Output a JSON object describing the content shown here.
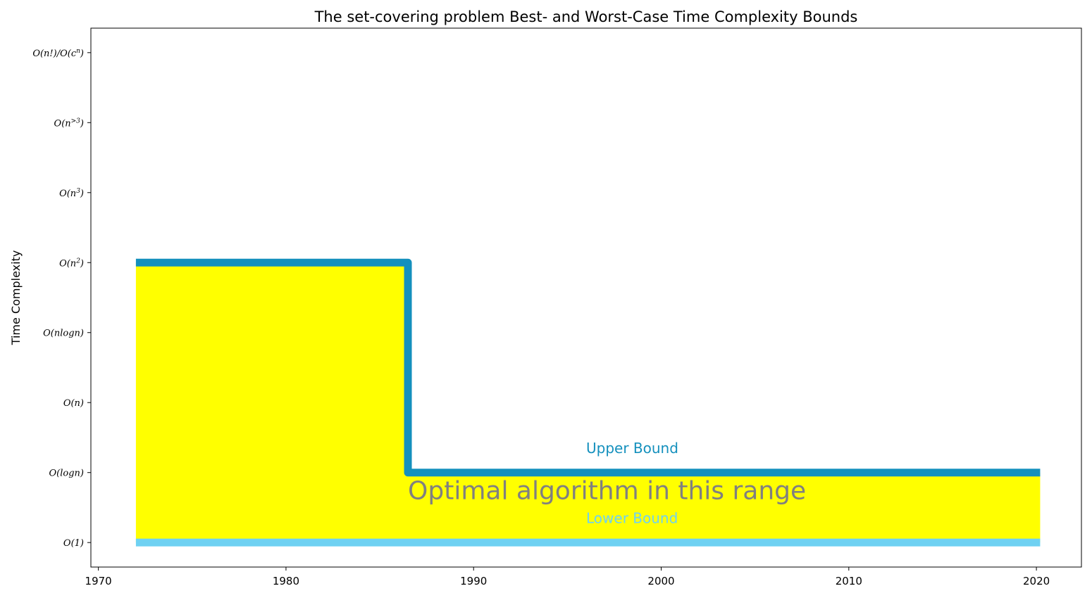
{
  "chart_data": {
    "type": "area",
    "title": "The set-covering problem Best- and Worst-Case Time Complexity Bounds",
    "xlabel": "",
    "ylabel": "Time Complexity",
    "xlim": [
      1969.6,
      2022.4
    ],
    "ylim": [
      0.65,
      8.35
    ],
    "xticks": [
      1970,
      1980,
      1990,
      2000,
      2010,
      2020
    ],
    "yticks": [
      {
        "value": 1,
        "label": "O(1)"
      },
      {
        "value": 2,
        "label": "O(logn)"
      },
      {
        "value": 3,
        "label": "O(n)"
      },
      {
        "value": 4,
        "label": "O(nlogn)"
      },
      {
        "value": 5,
        "label": "O(n^2)"
      },
      {
        "value": 6,
        "label": "O(n^3)"
      },
      {
        "value": 7,
        "label": "O(n^>3)"
      },
      {
        "value": 8,
        "label": "O(n!)/O(c^n)"
      }
    ],
    "upper_bound": {
      "name": "Upper Bound",
      "color": "#1490bd",
      "x": [
        1972,
        1986.5,
        1986.5,
        2020.2
      ],
      "y": [
        5,
        5,
        2,
        2
      ]
    },
    "lower_bound": {
      "name": "Lower Bound",
      "color": "#6fd1f2",
      "x": [
        1972,
        2020.2
      ],
      "y": [
        1,
        1
      ]
    },
    "fill_color": "#ffff00",
    "annotations": [
      {
        "text": "Upper Bound",
        "x": 1996,
        "y": 2.28,
        "color": "#1490bd"
      },
      {
        "text": "Optimal algorithm in this range",
        "x": 1986.5,
        "y": 1.62,
        "color": "#808080"
      },
      {
        "text": "Lower Bound",
        "x": 1996,
        "y": 1.28,
        "color": "#6fd1f2"
      }
    ],
    "grid": false,
    "legend": "none"
  }
}
